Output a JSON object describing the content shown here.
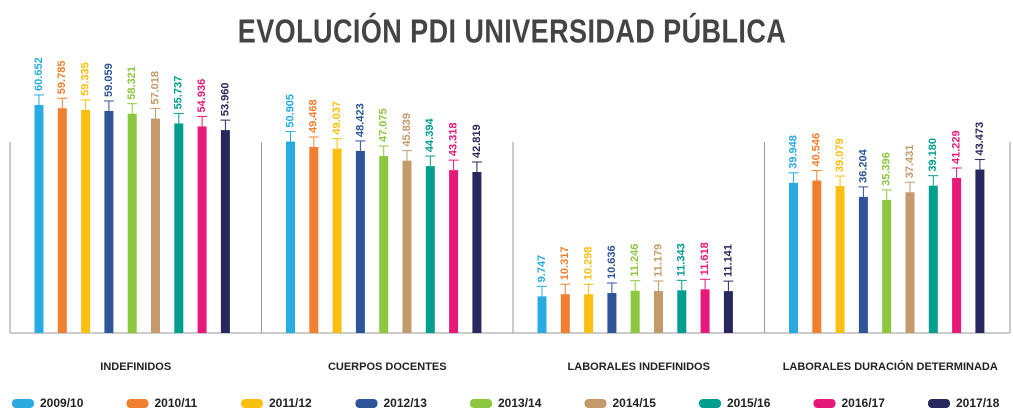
{
  "chart_data": {
    "type": "bar",
    "title": "EVOLUCIÓN PDI UNIVERSIDAD PÚBLICA",
    "categories": [
      "INDEFINIDOS",
      "CUERPOS DOCENTES",
      "LABORALES INDEFINIDOS",
      "LABORALES DURACIÓN DETERMINADA"
    ],
    "ylim": [
      0,
      65000
    ],
    "series": [
      {
        "name": "2009/10",
        "color": "#29abe2",
        "values": [
          60652,
          50905,
          9747,
          39948
        ],
        "value_labels": [
          "60.652",
          "50.905",
          "9.747",
          "39.948"
        ]
      },
      {
        "name": "2010/11",
        "color": "#f08030",
        "values": [
          59785,
          49468,
          10317,
          40546
        ],
        "value_labels": [
          "59.785",
          "49.468",
          "10.317",
          "40.546"
        ]
      },
      {
        "name": "2011/12",
        "color": "#fbbf12",
        "values": [
          59335,
          49037,
          10298,
          39079
        ],
        "value_labels": [
          "59.335",
          "49.037",
          "10.298",
          "39.079"
        ]
      },
      {
        "name": "2012/13",
        "color": "#2e5597",
        "values": [
          59059,
          48423,
          10636,
          36204
        ],
        "value_labels": [
          "59.059",
          "48.423",
          "10.636",
          "36.204"
        ]
      },
      {
        "name": "2013/14",
        "color": "#8dc63f",
        "values": [
          58321,
          47075,
          11246,
          35396
        ],
        "value_labels": [
          "58.321",
          "47.075",
          "11.246",
          "35.396"
        ]
      },
      {
        "name": "2014/15",
        "color": "#c49a6c",
        "values": [
          57018,
          45839,
          11179,
          37431
        ],
        "value_labels": [
          "57.018",
          "45.839",
          "11.179",
          "37.431"
        ]
      },
      {
        "name": "2015/16",
        "color": "#009e8e",
        "values": [
          55737,
          44394,
          11343,
          39180
        ],
        "value_labels": [
          "55.737",
          "44.394",
          "11.343",
          "39.180"
        ]
      },
      {
        "name": "2016/17",
        "color": "#e6197a",
        "values": [
          54936,
          43318,
          11618,
          41229
        ],
        "value_labels": [
          "54.936",
          "43.318",
          "11.618",
          "41.229"
        ]
      },
      {
        "name": "2017/18",
        "color": "#28285e",
        "values": [
          53960,
          42819,
          11141,
          43473
        ],
        "value_labels": [
          "53.960",
          "42.819",
          "11.141",
          "43.473"
        ]
      }
    ]
  }
}
